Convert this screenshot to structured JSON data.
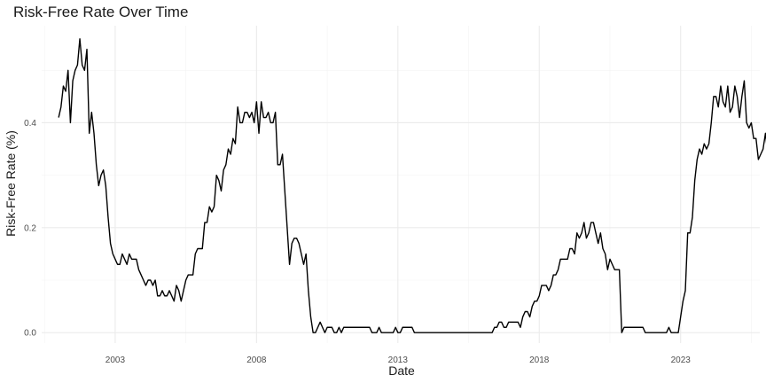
{
  "chart_data": {
    "type": "line",
    "title": "Risk-Free Rate Over Time",
    "xlabel": "Date",
    "ylabel": "Risk-Free Rate (%)",
    "grid": true,
    "legend": "none",
    "line_color": "#000000",
    "xlim": [
      2000.4,
      2025.8
    ],
    "ylim": [
      -0.02,
      0.585
    ],
    "x_ticks": [
      2003,
      2008,
      2013,
      2018,
      2023
    ],
    "x_tick_labels": [
      "2003",
      "2008",
      "2013",
      "2018",
      "2023"
    ],
    "y_ticks": [
      0.0,
      0.2,
      0.4
    ],
    "y_tick_labels": [
      "0.0",
      "0.2",
      "0.4"
    ],
    "x_start": "2001-01",
    "interval": "monthly",
    "series": [
      {
        "values": [
          0.41,
          0.43,
          0.47,
          0.46,
          0.5,
          0.4,
          0.48,
          0.5,
          0.51,
          0.56,
          0.51,
          0.5,
          0.54,
          0.38,
          0.42,
          0.38,
          0.32,
          0.28,
          0.3,
          0.31,
          0.28,
          0.22,
          0.17,
          0.15,
          0.14,
          0.13,
          0.13,
          0.15,
          0.14,
          0.13,
          0.15,
          0.14,
          0.14,
          0.14,
          0.12,
          0.11,
          0.1,
          0.09,
          0.1,
          0.1,
          0.09,
          0.1,
          0.07,
          0.07,
          0.08,
          0.07,
          0.07,
          0.08,
          0.07,
          0.06,
          0.09,
          0.08,
          0.06,
          0.08,
          0.1,
          0.11,
          0.11,
          0.11,
          0.15,
          0.16,
          0.16,
          0.16,
          0.21,
          0.21,
          0.24,
          0.23,
          0.24,
          0.3,
          0.29,
          0.27,
          0.31,
          0.32,
          0.35,
          0.34,
          0.37,
          0.36,
          0.43,
          0.4,
          0.4,
          0.42,
          0.42,
          0.41,
          0.42,
          0.4,
          0.44,
          0.38,
          0.44,
          0.41,
          0.41,
          0.42,
          0.4,
          0.4,
          0.42,
          0.32,
          0.32,
          0.34,
          0.27,
          0.2,
          0.13,
          0.17,
          0.18,
          0.18,
          0.17,
          0.15,
          0.13,
          0.15,
          0.08,
          0.03,
          0.0,
          0.0,
          0.01,
          0.02,
          0.01,
          0.0,
          0.01,
          0.01,
          0.01,
          0.0,
          0.0,
          0.01,
          0.0,
          0.01,
          0.01,
          0.01,
          0.01,
          0.01,
          0.01,
          0.01,
          0.01,
          0.01,
          0.01,
          0.01,
          0.01,
          0.0,
          0.0,
          0.0,
          0.01,
          0.0,
          0.0,
          0.0,
          0.0,
          0.0,
          0.0,
          0.01,
          0.0,
          0.0,
          0.01,
          0.01,
          0.01,
          0.01,
          0.01,
          0.0,
          0.0,
          0.0,
          0.0,
          0.0,
          0.0,
          0.0,
          0.0,
          0.0,
          0.0,
          0.0,
          0.0,
          0.0,
          0.0,
          0.0,
          0.0,
          0.0,
          0.0,
          0.0,
          0.0,
          0.0,
          0.0,
          0.0,
          0.0,
          0.0,
          0.0,
          0.0,
          0.0,
          0.0,
          0.0,
          0.0,
          0.0,
          0.0,
          0.0,
          0.01,
          0.01,
          0.02,
          0.02,
          0.01,
          0.01,
          0.02,
          0.02,
          0.02,
          0.02,
          0.02,
          0.01,
          0.03,
          0.04,
          0.04,
          0.03,
          0.05,
          0.06,
          0.06,
          0.07,
          0.09,
          0.09,
          0.09,
          0.08,
          0.09,
          0.11,
          0.11,
          0.12,
          0.14,
          0.14,
          0.14,
          0.14,
          0.16,
          0.16,
          0.15,
          0.19,
          0.18,
          0.19,
          0.21,
          0.18,
          0.19,
          0.21,
          0.21,
          0.19,
          0.17,
          0.19,
          0.16,
          0.15,
          0.12,
          0.14,
          0.13,
          0.12,
          0.12,
          0.12,
          0.0,
          0.01,
          0.01,
          0.01,
          0.01,
          0.01,
          0.01,
          0.01,
          0.01,
          0.01,
          0.0,
          0.0,
          0.0,
          0.0,
          0.0,
          0.0,
          0.0,
          0.0,
          0.0,
          0.0,
          0.01,
          0.0,
          0.0,
          0.0,
          0.0,
          0.03,
          0.06,
          0.08,
          0.19,
          0.19,
          0.22,
          0.29,
          0.33,
          0.35,
          0.34,
          0.36,
          0.35,
          0.36,
          0.4,
          0.45,
          0.45,
          0.43,
          0.47,
          0.44,
          0.43,
          0.47,
          0.42,
          0.43,
          0.47,
          0.45,
          0.41,
          0.45,
          0.48,
          0.4,
          0.39,
          0.4,
          0.37,
          0.37,
          0.33,
          0.34,
          0.35,
          0.38,
          0.34
        ]
      }
    ]
  }
}
